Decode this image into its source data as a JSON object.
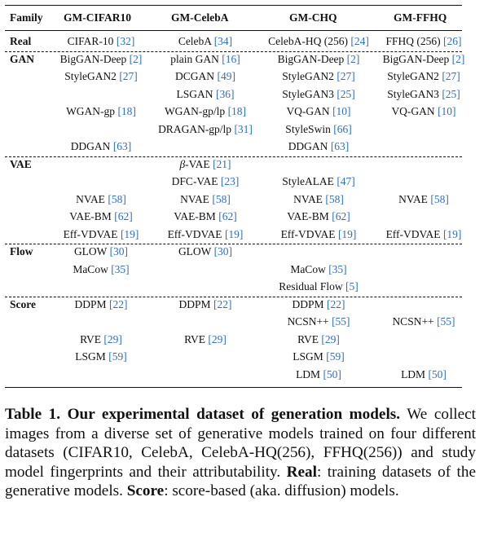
{
  "table": {
    "headers": [
      "Family",
      "GM-CIFAR10",
      "GM-CelebA",
      "GM-CHQ",
      "GM-FFHQ"
    ],
    "families": [
      "Real",
      "GAN",
      "VAE",
      "Flow",
      "Score"
    ],
    "rows": [
      {
        "family": "Real",
        "cells": [
          [
            "CIFAR-10 ",
            "[32]"
          ],
          [
            "CelebA ",
            "[34]"
          ],
          [
            "CelebA-HQ (256) ",
            "[24]"
          ],
          [
            "FFHQ (256) ",
            "[26]"
          ]
        ]
      },
      {
        "family": "GAN",
        "cells": [
          [
            "BigGAN-Deep ",
            "[2]"
          ],
          [
            "plain GAN ",
            "[16]"
          ],
          [
            "BigGAN-Deep ",
            "[2]"
          ],
          [
            "BigGAN-Deep ",
            "[2]"
          ]
        ]
      },
      {
        "family": "",
        "cells": [
          [
            "StyleGAN2 ",
            "[27]"
          ],
          [
            "DCGAN ",
            "[49]"
          ],
          [
            "StyleGAN2 ",
            "[27]"
          ],
          [
            "StyleGAN2 ",
            "[27]"
          ]
        ]
      },
      {
        "family": "",
        "cells": [
          [
            "",
            ""
          ],
          [
            "LSGAN ",
            "[36]"
          ],
          [
            "StyleGAN3 ",
            "[25]"
          ],
          [
            "StyleGAN3 ",
            "[25]"
          ]
        ]
      },
      {
        "family": "",
        "cells": [
          [
            "WGAN-gp ",
            "[18]"
          ],
          [
            "WGAN-gp/lp ",
            "[18]"
          ],
          [
            "VQ-GAN ",
            "[10]"
          ],
          [
            "VQ-GAN ",
            "[10]"
          ]
        ]
      },
      {
        "family": "",
        "cells": [
          [
            "",
            ""
          ],
          [
            "DRAGAN-gp/lp ",
            "[31]"
          ],
          [
            "StyleSwin ",
            "[66]"
          ],
          [
            "",
            ""
          ]
        ]
      },
      {
        "family": "",
        "cells": [
          [
            "DDGAN ",
            "[63]"
          ],
          [
            "",
            ""
          ],
          [
            "DDGAN ",
            "[63]"
          ],
          [
            "",
            ""
          ]
        ]
      },
      {
        "family": "VAE",
        "cells": [
          [
            "",
            ""
          ],
          [
            "β-VAE ",
            "[21]"
          ],
          [
            "",
            ""
          ],
          [
            "",
            ""
          ]
        ]
      },
      {
        "family": "",
        "cells": [
          [
            "",
            ""
          ],
          [
            "DFC-VAE ",
            "[23]"
          ],
          [
            "StyleALAE ",
            "[47]"
          ],
          [
            "",
            ""
          ]
        ]
      },
      {
        "family": "",
        "cells": [
          [
            "NVAE ",
            "[58]"
          ],
          [
            "NVAE ",
            "[58]"
          ],
          [
            "NVAE ",
            "[58]"
          ],
          [
            "NVAE ",
            "[58]"
          ]
        ]
      },
      {
        "family": "",
        "cells": [
          [
            "VAE-BM ",
            "[62]"
          ],
          [
            "VAE-BM ",
            "[62]"
          ],
          [
            "VAE-BM ",
            "[62]"
          ],
          [
            "",
            ""
          ]
        ]
      },
      {
        "family": "",
        "cells": [
          [
            "Eff-VDVAE ",
            "[19]"
          ],
          [
            "Eff-VDVAE ",
            "[19]"
          ],
          [
            "Eff-VDVAE ",
            "[19]"
          ],
          [
            "Eff-VDVAE ",
            "[19]"
          ]
        ]
      },
      {
        "family": "Flow",
        "cells": [
          [
            "GLOW ",
            "[30]"
          ],
          [
            "GLOW ",
            "[30]"
          ],
          [
            "",
            ""
          ],
          [
            "",
            ""
          ]
        ]
      },
      {
        "family": "",
        "cells": [
          [
            "MaCow ",
            "[35]"
          ],
          [
            "",
            ""
          ],
          [
            "MaCow ",
            "[35]"
          ],
          [
            "",
            ""
          ]
        ]
      },
      {
        "family": "",
        "cells": [
          [
            "",
            ""
          ],
          [
            "",
            ""
          ],
          [
            "Residual Flow ",
            "[5]"
          ],
          [
            "",
            ""
          ]
        ]
      },
      {
        "family": "Score",
        "cells": [
          [
            "DDPM ",
            "[22]"
          ],
          [
            "DDPM ",
            "[22]"
          ],
          [
            "DDPM ",
            "[22]"
          ],
          [
            "",
            ""
          ]
        ]
      },
      {
        "family": "",
        "cells": [
          [
            "",
            ""
          ],
          [
            "",
            ""
          ],
          [
            "NCSN++ ",
            "[55]"
          ],
          [
            "NCSN++ ",
            "[55]"
          ]
        ]
      },
      {
        "family": "",
        "cells": [
          [
            "RVE ",
            "[29]"
          ],
          [
            "RVE ",
            "[29]"
          ],
          [
            "RVE ",
            "[29]"
          ],
          [
            "",
            ""
          ]
        ]
      },
      {
        "family": "",
        "cells": [
          [
            "LSGM ",
            "[59]"
          ],
          [
            "",
            ""
          ],
          [
            "LSGM ",
            "[59]"
          ],
          [
            "",
            ""
          ]
        ]
      },
      {
        "family": "",
        "cells": [
          [
            "",
            ""
          ],
          [
            "",
            ""
          ],
          [
            "LDM ",
            "[50]"
          ],
          [
            "LDM ",
            "[50]"
          ]
        ]
      }
    ]
  },
  "caption": {
    "label": "Table 1.",
    "title": "Our experimental dataset of generation models.",
    "text1": " We collect images from a diverse set of generative models trained on four different datasets (CIFAR10, CelebA, CelebA-HQ(256), FFHQ(256)) and study model fingerprints and their attributability.",
    "real_label": "Real",
    "text2": ": training datasets of the generative models. ",
    "score_label": "Score",
    "text3": ": score-based (aka. diffusion) models."
  }
}
